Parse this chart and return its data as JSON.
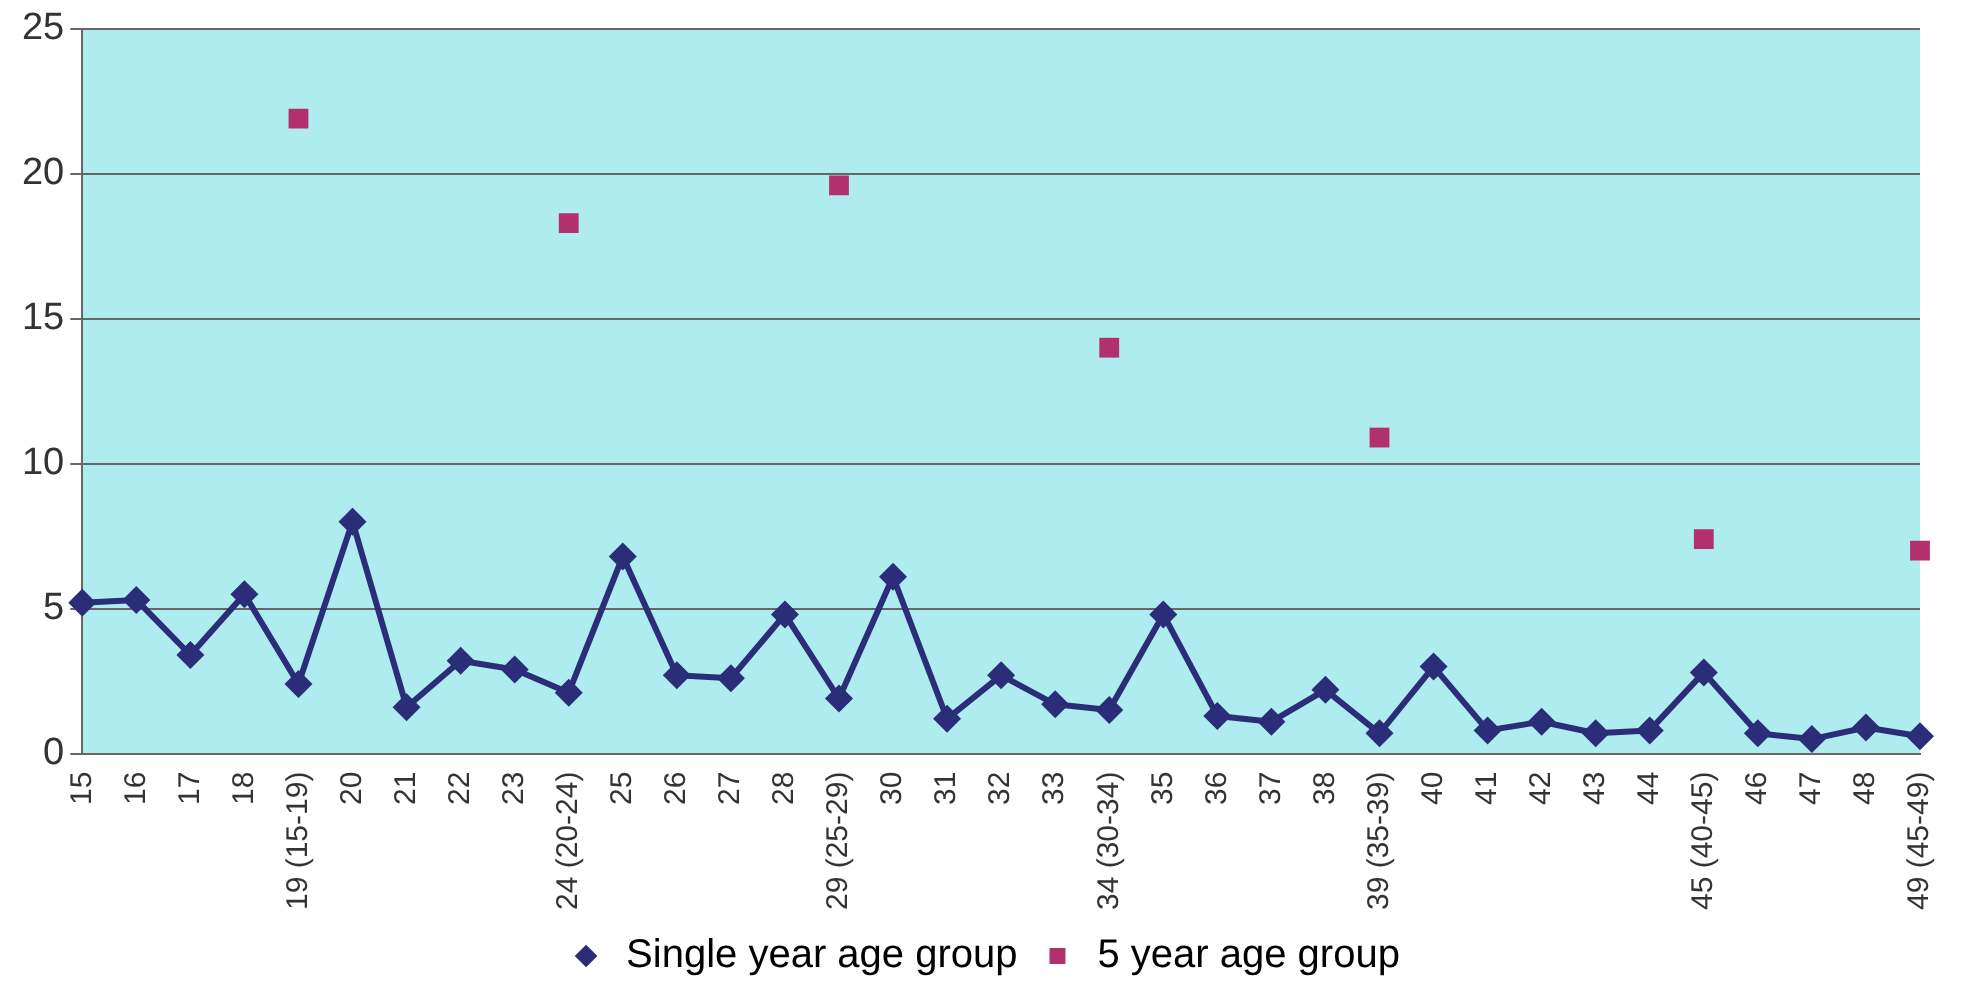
{
  "chart_data": {
    "type": "line",
    "categories": [
      "15",
      "16",
      "17",
      "18",
      "19 (15-19)",
      "20",
      "21",
      "22",
      "23",
      "24 (20-24)",
      "25",
      "26",
      "27",
      "28",
      "29 (25-29)",
      "30",
      "31",
      "32",
      "33",
      "34 (30-34)",
      "35",
      "36",
      "37",
      "38",
      "39 (35-39)",
      "40",
      "41",
      "42",
      "43",
      "44",
      "45 (40-45)",
      "46",
      "47",
      "48",
      "49 (45-49)"
    ],
    "series": [
      {
        "name": "Single year age group",
        "color": "#2b2d78",
        "marker": "diamond",
        "values": [
          5.2,
          5.3,
          3.4,
          5.5,
          2.4,
          8.0,
          1.6,
          3.2,
          2.9,
          2.1,
          6.8,
          2.7,
          2.6,
          4.8,
          1.9,
          6.1,
          1.2,
          2.7,
          1.7,
          1.5,
          4.8,
          1.3,
          1.1,
          2.2,
          0.7,
          3.0,
          0.8,
          1.1,
          0.7,
          0.8,
          2.8,
          0.7,
          0.5,
          0.9,
          0.6
        ]
      },
      {
        "name": "5 year age group",
        "type": "scatter",
        "color": "#b2306c",
        "marker": "square",
        "values": [
          null,
          null,
          null,
          null,
          21.9,
          null,
          null,
          null,
          null,
          18.3,
          null,
          null,
          null,
          null,
          19.6,
          null,
          null,
          null,
          null,
          14.0,
          null,
          null,
          null,
          null,
          10.9,
          null,
          null,
          null,
          null,
          null,
          7.4,
          null,
          null,
          null,
          7.0
        ]
      }
    ],
    "ylim": [
      0,
      25
    ],
    "yticks": [
      0,
      5,
      10,
      15,
      20,
      25
    ],
    "grid": "y",
    "legend": "bottom"
  }
}
